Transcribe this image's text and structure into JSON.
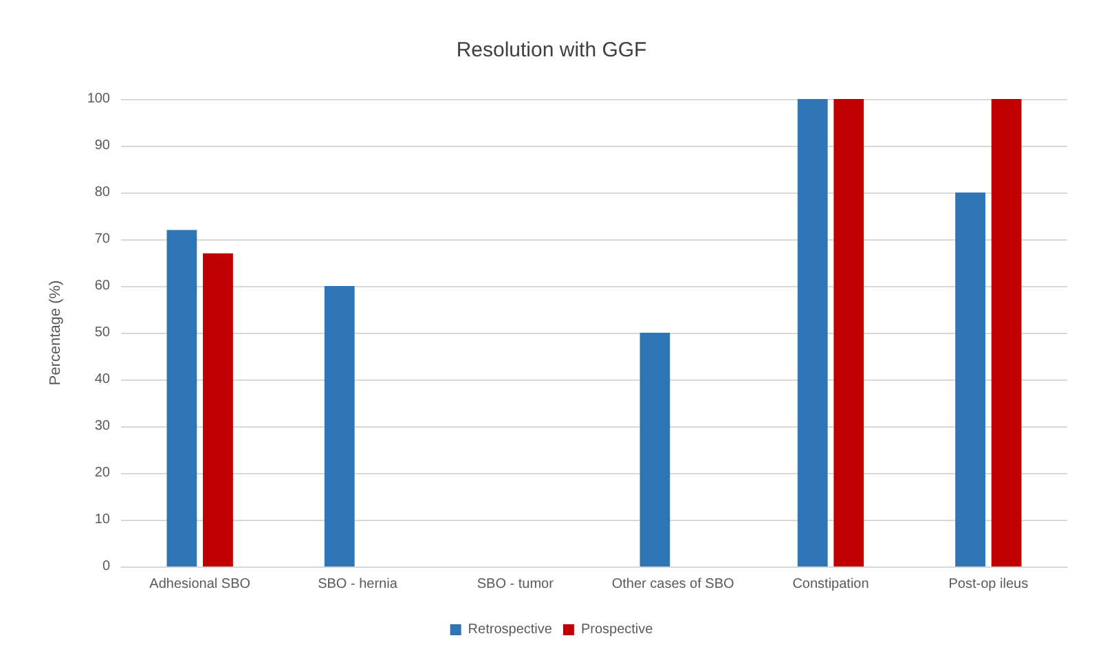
{
  "chart_data": {
    "type": "bar",
    "title": "Resolution with GGF",
    "ylabel": "Percentage (%)",
    "categories": [
      "Adhesional SBO",
      "SBO - hernia",
      "SBO - tumor",
      "Other cases of SBO",
      "Constipation",
      "Post-op ileus"
    ],
    "series": [
      {
        "name": "Retrospective",
        "color": "#2e75b6",
        "values": [
          72,
          60,
          0,
          50,
          100,
          80
        ]
      },
      {
        "name": "Prospective",
        "color": "#c00000",
        "values": [
          67,
          0,
          0,
          0,
          100,
          100
        ]
      }
    ],
    "ylim": [
      0,
      100
    ],
    "yticks": [
      0,
      10,
      20,
      30,
      40,
      50,
      60,
      70,
      80,
      90,
      100
    ],
    "grid": "y",
    "legend": "bottom"
  }
}
